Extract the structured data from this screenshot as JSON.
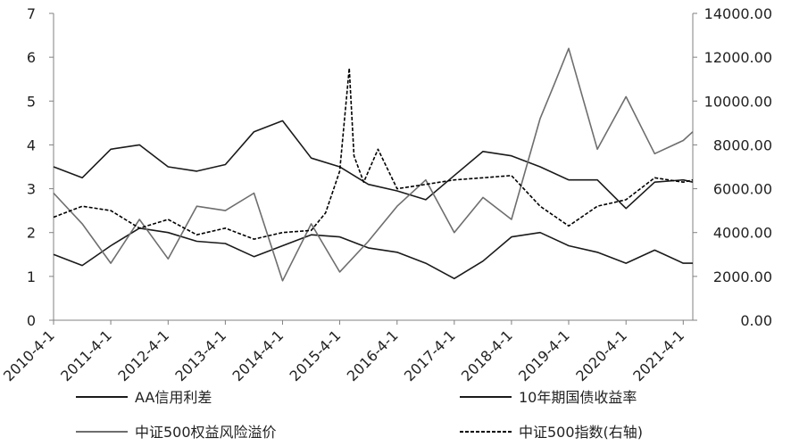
{
  "chart_data": {
    "type": "line",
    "x_tick_labels": [
      "2010-4-1",
      "2011-4-1",
      "2012-4-1",
      "2013-4-1",
      "2014-4-1",
      "2015-4-1",
      "2016-4-1",
      "2017-4-1",
      "2018-4-1",
      "2019-4-1",
      "2020-4-1",
      "2021-4-1"
    ],
    "y_left": {
      "ylim": [
        0,
        7
      ],
      "ticks": [
        "0",
        "1",
        "2",
        "3",
        "4",
        "5",
        "6",
        "7"
      ]
    },
    "y_right": {
      "ylim": [
        0,
        14000
      ],
      "ticks": [
        "0.00",
        "2000.00",
        "4000.00",
        "6000.00",
        "8000.00",
        "10000.00",
        "12000.00",
        "14000.00"
      ]
    },
    "grid": false,
    "legend_position": "bottom",
    "series": [
      {
        "name": "AA信用利差",
        "axis": "left",
        "color": "#1a1a1a",
        "style": "solid",
        "x": [
          "2010-04-01",
          "2010-10-01",
          "2011-04-01",
          "2011-10-01",
          "2012-04-01",
          "2012-10-01",
          "2013-04-01",
          "2013-10-01",
          "2014-04-01",
          "2014-10-01",
          "2015-04-01",
          "2015-10-01",
          "2016-04-01",
          "2016-10-01",
          "2017-04-01",
          "2017-10-01",
          "2018-04-01",
          "2018-10-01",
          "2019-04-01",
          "2019-10-01",
          "2020-04-01",
          "2020-10-01",
          "2021-04-01",
          "2021-06-01"
        ],
        "values": [
          1.5,
          1.25,
          1.7,
          2.1,
          2.0,
          1.8,
          1.75,
          1.45,
          1.7,
          1.95,
          1.9,
          1.65,
          1.55,
          1.3,
          0.95,
          1.35,
          1.9,
          2.0,
          1.7,
          1.55,
          1.3,
          1.6,
          1.3,
          1.3
        ]
      },
      {
        "name": "10年期国债收益率",
        "axis": "left",
        "color": "#1a1a1a",
        "style": "solid",
        "x": [
          "2010-04-01",
          "2010-10-01",
          "2011-04-01",
          "2011-10-01",
          "2012-04-01",
          "2012-10-01",
          "2013-04-01",
          "2013-10-01",
          "2014-04-01",
          "2014-10-01",
          "2015-04-01",
          "2015-10-01",
          "2016-04-01",
          "2016-10-01",
          "2017-04-01",
          "2017-10-01",
          "2018-04-01",
          "2018-10-01",
          "2019-04-01",
          "2019-10-01",
          "2020-04-01",
          "2020-10-01",
          "2021-04-01",
          "2021-06-01"
        ],
        "values": [
          3.5,
          3.25,
          3.9,
          4.0,
          3.5,
          3.4,
          3.55,
          4.3,
          4.55,
          3.7,
          3.5,
          3.1,
          2.95,
          2.75,
          3.3,
          3.85,
          3.75,
          3.5,
          3.2,
          3.2,
          2.55,
          3.15,
          3.2,
          3.15
        ]
      },
      {
        "name": "中证500权益风险溢价",
        "axis": "left",
        "color": "#6e6e6e",
        "style": "solid",
        "x": [
          "2010-04-01",
          "2010-10-01",
          "2011-04-01",
          "2011-10-01",
          "2012-04-01",
          "2012-10-01",
          "2013-04-01",
          "2013-10-01",
          "2014-04-01",
          "2014-10-01",
          "2015-04-01",
          "2015-10-01",
          "2016-04-01",
          "2016-10-01",
          "2017-04-01",
          "2017-10-01",
          "2018-04-01",
          "2018-10-01",
          "2019-01-01",
          "2019-04-01",
          "2019-10-01",
          "2020-04-01",
          "2020-10-01",
          "2021-04-01",
          "2021-06-01"
        ],
        "values": [
          2.9,
          2.2,
          1.3,
          2.3,
          1.4,
          2.6,
          2.5,
          2.9,
          0.9,
          2.2,
          1.1,
          1.8,
          2.6,
          3.2,
          2.0,
          2.8,
          2.3,
          4.6,
          5.4,
          6.2,
          3.9,
          5.1,
          3.8,
          4.1,
          4.3
        ]
      },
      {
        "name": "中证500指数(右轴)",
        "axis": "right",
        "color": "#000000",
        "style": "dashed",
        "x": [
          "2010-04-01",
          "2010-10-01",
          "2011-04-01",
          "2011-10-01",
          "2012-04-01",
          "2012-10-01",
          "2013-04-01",
          "2013-10-01",
          "2014-04-01",
          "2014-10-01",
          "2015-01-01",
          "2015-04-01",
          "2015-06-01",
          "2015-07-01",
          "2015-09-01",
          "2015-12-01",
          "2016-04-01",
          "2016-10-01",
          "2017-04-01",
          "2017-10-01",
          "2018-04-01",
          "2018-10-01",
          "2019-04-01",
          "2019-10-01",
          "2020-04-01",
          "2020-10-01",
          "2021-04-01",
          "2021-06-01"
        ],
        "values": [
          4700,
          5200,
          5000,
          4200,
          4600,
          3900,
          4200,
          3700,
          4000,
          4100,
          4900,
          6800,
          11500,
          7500,
          6300,
          7800,
          6000,
          6200,
          6400,
          6500,
          6600,
          5200,
          4300,
          5200,
          5500,
          6500,
          6300,
          6400
        ]
      }
    ]
  }
}
